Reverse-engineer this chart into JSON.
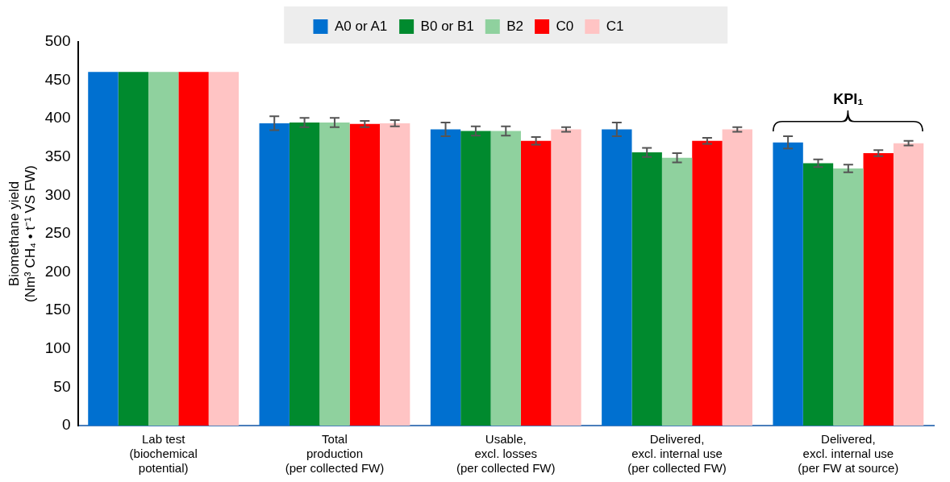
{
  "chart_data": {
    "type": "bar",
    "ylabel": "Biomethane yield\n(Nm³ CH₄ • t⁻¹ VS FW)",
    "categories": [
      "Lab test\n(biochemical\npotential)",
      "Total\nproduction\n(per collected FW)",
      "Usable,\nexcl. losses\n(per collected FW)",
      "Delivered,\nexcl. internal use\n(per collected FW)",
      "Delivered,\nexcl. internal use\n(per FW at source)"
    ],
    "series": [
      {
        "name": "A0 or A1",
        "color": "#0070d0",
        "values": [
          461,
          394,
          386,
          386,
          369
        ],
        "errors": [
          null,
          9,
          9,
          9,
          8
        ]
      },
      {
        "name": "B0 or B1",
        "color": "#008a2e",
        "values": [
          461,
          395,
          384,
          356,
          342
        ],
        "errors": [
          null,
          6,
          6,
          6,
          5
        ]
      },
      {
        "name": "B2",
        "color": "#8fd19e",
        "values": [
          461,
          395,
          384,
          349,
          335
        ],
        "errors": [
          null,
          6,
          6,
          6,
          5
        ]
      },
      {
        "name": "C0",
        "color": "#ff0000",
        "values": [
          461,
          393,
          371,
          371,
          355
        ],
        "errors": [
          null,
          4,
          5,
          4,
          4
        ]
      },
      {
        "name": "C1",
        "color": "#ffc4c4",
        "values": [
          461,
          394,
          386,
          386,
          368
        ],
        "errors": [
          null,
          4,
          3,
          3,
          3
        ]
      }
    ],
    "ylim": [
      0,
      500
    ],
    "yticks": [
      0,
      50,
      100,
      150,
      200,
      250,
      300,
      350,
      400,
      450,
      500
    ],
    "annotations": [
      "KPI₁"
    ],
    "legend": "top",
    "grid": false
  }
}
